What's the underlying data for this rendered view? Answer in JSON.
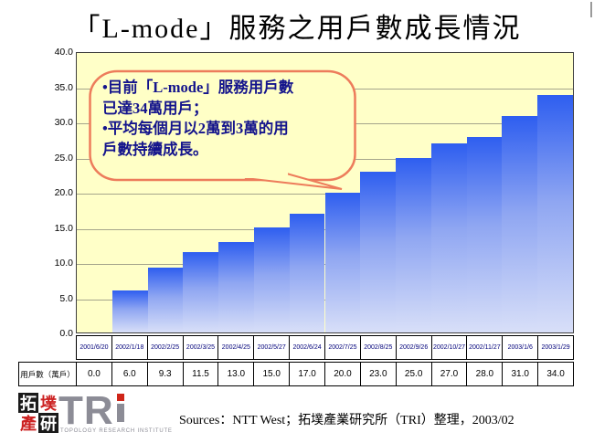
{
  "title": "「L-mode」服務之用戶數成長情況",
  "callout": {
    "lines": [
      "•目前「L-mode」服務用戶數",
      "已達34萬用戶；",
      "•平均每個月以2萬到3萬的用",
      "戶數持續成長。"
    ]
  },
  "chart_data": {
    "type": "bar",
    "title": "「L-mode」服務之用戶數成長情況",
    "categories": [
      "2001/6/20",
      "2002/1/18",
      "2002/2/25",
      "2002/3/25",
      "2002/4/25",
      "2002/5/27",
      "2002/6/24",
      "2002/7/25",
      "2002/8/25",
      "2002/9/26",
      "2002/10/27",
      "2002/11/27",
      "2003/1/6",
      "2003/1/29"
    ],
    "values": [
      0.0,
      6.0,
      9.3,
      11.5,
      13.0,
      15.0,
      17.0,
      20.0,
      23.0,
      25.0,
      27.0,
      28.0,
      31.0,
      34.0
    ],
    "value_labels": [
      "0.0",
      "6.0",
      "9.3",
      "11.5",
      "13.0",
      "15.0",
      "17.0",
      "20.0",
      "23.0",
      "25.0",
      "27.0",
      "28.0",
      "31.0",
      "34.0"
    ],
    "series_label": "用戶數（萬戶）",
    "xlabel": "",
    "ylabel": "用戶數（萬戶）",
    "ylim": [
      0,
      40
    ],
    "ytick_step": 5,
    "grid": true,
    "legend": "none",
    "plot_bg": "#ffffc8",
    "bar_color_top": "#2e5ef0",
    "bar_color_bottom": "#d8dff8"
  },
  "logo": {
    "chars": [
      "拓",
      "墣",
      "產",
      "研"
    ],
    "acronym": "TR",
    "subtitle": "TOPOLOGY RESEARCH INSTITUTE"
  },
  "source_note": "Sources：NTT West；拓墣產業研究所（TRI）整理，2003/02"
}
